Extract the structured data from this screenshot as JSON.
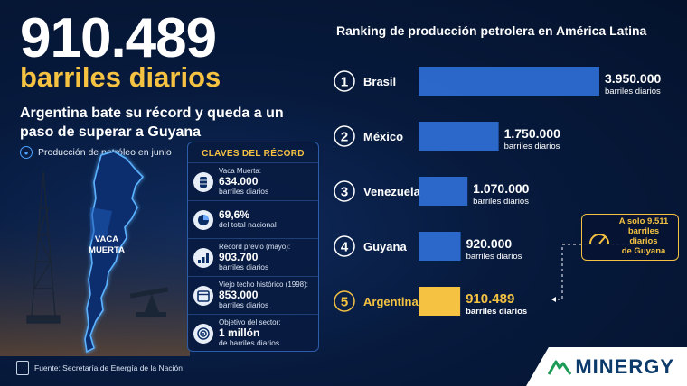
{
  "headline": {
    "big_number": "910.489",
    "big_unit": "barriles diarios",
    "title": "Argentina bate su récord y queda a un paso de superar a Guyana",
    "subtitle": "Producción de petróleo en junio"
  },
  "map": {
    "label_line1": "VACA",
    "label_line2": "MUERTA"
  },
  "claves": {
    "title": "CLAVES DEL RÉCORD",
    "items": [
      {
        "label": "Vaca Muerta:",
        "value": "634.000",
        "unit": "barriles diarios",
        "icon": "oil-barrel-icon"
      },
      {
        "label": "",
        "value": "69,6%",
        "unit": "del total nacional",
        "icon": "pie-chart-icon"
      },
      {
        "label": "Récord previo (mayo):",
        "value": "903.700",
        "unit": "barriles diarios",
        "icon": "rising-bars-icon"
      },
      {
        "label": "Viejo techo histórico (1998):",
        "value": "853.000",
        "unit": "barriles diarios",
        "icon": "calendar-icon"
      },
      {
        "label": "Objetivo del sector:",
        "value": "1 millón",
        "unit": "de barriles diarios",
        "icon": "target-icon"
      }
    ]
  },
  "footer": {
    "source": "Fuente: Secretaría de Energía de la Nación"
  },
  "badge": {
    "line1": "A solo 9.511",
    "line2": "barriles diarios",
    "line3": "de Guyana"
  },
  "logo": {
    "text": "MINERGY"
  },
  "colors": {
    "bar_blue": "#2f6fd6",
    "bar_highlight": "#f5c242",
    "accent_gold": "#f5c242",
    "background": "#071a3d"
  },
  "chart_data": {
    "type": "bar",
    "orientation": "horizontal",
    "title": "Ranking de producción petrolera en América Latina",
    "ranks": [
      "1",
      "2",
      "3",
      "4",
      "5"
    ],
    "categories": [
      "Brasil",
      "México",
      "Venezuela",
      "Guyana",
      "Argentina"
    ],
    "values": [
      3950000,
      1750000,
      1070000,
      920000,
      910489
    ],
    "value_labels": [
      "3.950.000",
      "1.750.000",
      "1.070.000",
      "920.000",
      "910.489"
    ],
    "unit_label": "barriles diarios",
    "highlight": "Argentina",
    "xlim": [
      0,
      3950000
    ],
    "grid": false
  }
}
